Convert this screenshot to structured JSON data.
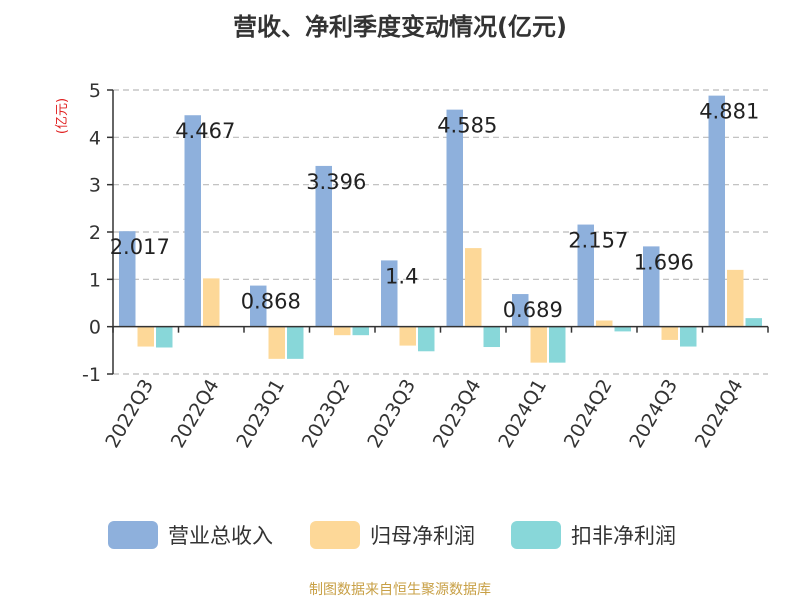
{
  "chart_data": {
    "type": "bar",
    "title": "营收、净利季度变动情况(亿元)",
    "ylabel": "(亿元)",
    "xlabel": "",
    "ylim": [
      -1,
      5
    ],
    "yticks": [
      -1,
      0,
      1,
      2,
      3,
      4,
      5
    ],
    "grid": true,
    "legend_position": "bottom",
    "categories": [
      "2022Q3",
      "2022Q4",
      "2023Q1",
      "2023Q2",
      "2023Q3",
      "2023Q4",
      "2024Q1",
      "2024Q2",
      "2024Q3",
      "2024Q4"
    ],
    "series": [
      {
        "name": "营业总收入",
        "color": "#8eb0dc",
        "values": [
          2.017,
          4.467,
          0.868,
          3.396,
          1.4,
          4.585,
          0.689,
          2.157,
          1.696,
          4.881
        ]
      },
      {
        "name": "归母净利润",
        "color": "#fdd898",
        "values": [
          -0.42,
          1.02,
          -0.68,
          -0.18,
          -0.4,
          1.66,
          -0.76,
          0.13,
          -0.28,
          1.2
        ]
      },
      {
        "name": "扣非净利润",
        "color": "#88d7d9",
        "values": [
          -0.44,
          0.0,
          -0.68,
          -0.18,
          -0.52,
          -0.43,
          -0.76,
          -0.1,
          -0.42,
          0.18
        ]
      }
    ],
    "data_labels": [
      "2.017",
      "4.467",
      "0.868",
      "3.396",
      "1.4",
      "4.585",
      "0.689",
      "2.157",
      "1.696",
      "4.881"
    ],
    "source": "制图数据来自恒生聚源数据库"
  }
}
